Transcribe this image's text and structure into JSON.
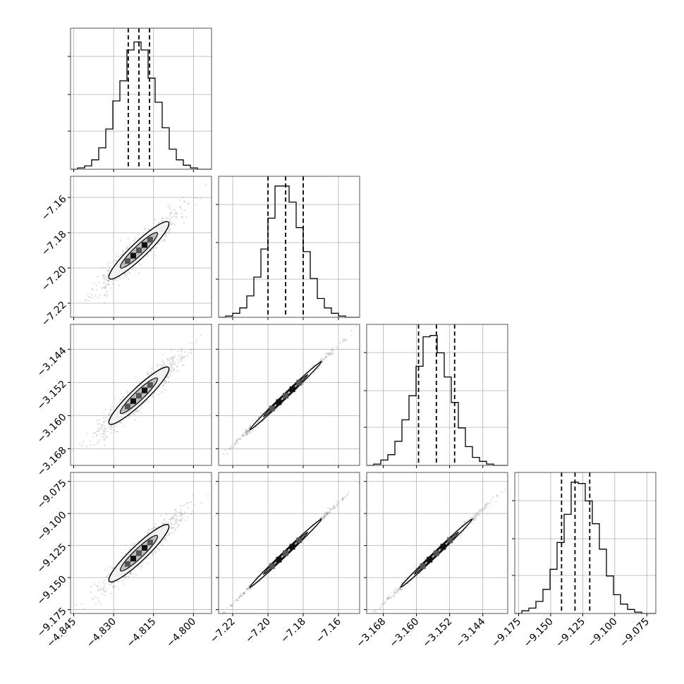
{
  "chart_data": {
    "type": "corner",
    "parameters": [
      {
        "ticks": [],
        "range": [
          -4.845,
          -4.79
        ]
      },
      {
        "ticks": [
          "−7.22",
          "−7.20",
          "−7.18",
          "−7.16"
        ],
        "tick_values": [
          -7.22,
          -7.2,
          -7.18,
          -7.16
        ],
        "range": [
          -7.228,
          -7.148
        ]
      },
      {
        "ticks": [
          "−3.168",
          "−3.160",
          "−3.152",
          "−3.144"
        ],
        "tick_values": [
          -3.168,
          -3.16,
          -3.152,
          -3.144
        ],
        "range": [
          -3.172,
          -3.138
        ]
      },
      {
        "ticks": [
          "−9.175",
          "−9.150",
          "−9.125",
          "−9.100",
          "−9.075"
        ],
        "tick_values": [
          -9.175,
          -9.15,
          -9.125,
          -9.1,
          -9.075
        ],
        "range": [
          -9.178,
          -9.068
        ]
      }
    ],
    "x_tick_sets": [
      {
        "labels": [
          "−4.845",
          "−4.830",
          "−4.815",
          "−4.800"
        ],
        "values": [
          -4.845,
          -4.83,
          -4.815,
          -4.8
        ]
      },
      {
        "labels": [
          "−7.22",
          "−7.20",
          "−7.18",
          "−7.16"
        ],
        "values": [
          -7.22,
          -7.2,
          -7.18,
          -7.16
        ]
      },
      {
        "labels": [
          "−3.168",
          "−3.160",
          "−3.152",
          "−3.144"
        ],
        "values": [
          -3.168,
          -3.16,
          -3.152,
          -3.144
        ]
      },
      {
        "labels": [
          "−9.175",
          "−9.150",
          "−9.125",
          "−9.100",
          "−9.075"
        ],
        "values": [
          -9.175,
          -9.15,
          -9.125,
          -9.1,
          -9.075
        ]
      }
    ],
    "quantiles": [
      [
        -4.8245,
        -4.8205,
        -4.8165
      ],
      [
        -7.2,
        -7.19,
        -7.18
      ],
      [
        -3.1595,
        -3.1552,
        -3.1508
      ],
      [
        -9.1415,
        -9.131,
        -9.1195
      ]
    ],
    "histograms": [
      [
        0,
        0.01,
        0.025,
        0.07,
        0.16,
        0.3,
        0.51,
        0.66,
        0.89,
        0.95,
        0.89,
        0.68,
        0.5,
        0.31,
        0.15,
        0.07,
        0.03,
        0.01,
        0,
        0
      ],
      [
        0,
        0.01,
        0.03,
        0.07,
        0.16,
        0.3,
        0.51,
        0.74,
        0.98,
        0.98,
        0.86,
        0.67,
        0.49,
        0.29,
        0.14,
        0.07,
        0.03,
        0.01,
        0,
        0
      ],
      [
        0,
        0.01,
        0.04,
        0.08,
        0.18,
        0.34,
        0.52,
        0.74,
        0.96,
        0.97,
        0.84,
        0.66,
        0.47,
        0.28,
        0.14,
        0.06,
        0.03,
        0.01,
        0,
        0
      ],
      [
        0,
        0.02,
        0.04,
        0.09,
        0.18,
        0.33,
        0.53,
        0.74,
        0.98,
        0.97,
        0.84,
        0.67,
        0.48,
        0.28,
        0.14,
        0.07,
        0.03,
        0.01,
        0,
        0
      ]
    ],
    "grid": true,
    "linestyle_quantiles": "dashed"
  }
}
